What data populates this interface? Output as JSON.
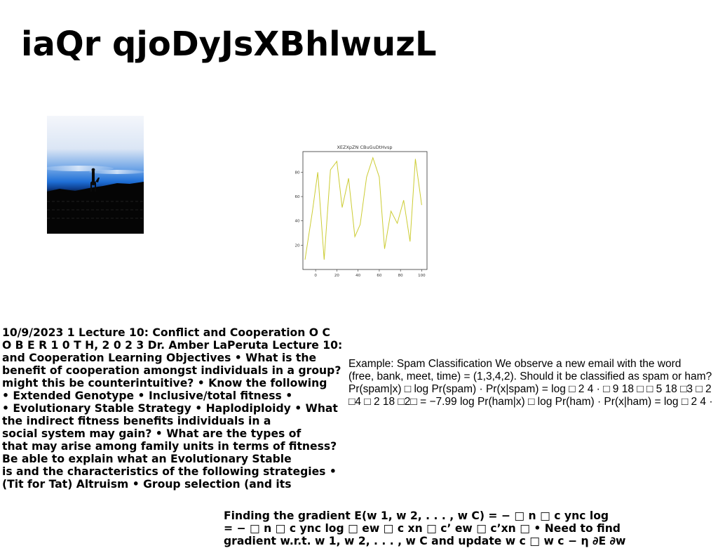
{
  "page": {
    "title": "iaQr qjoDyJsXBhlwuzL"
  },
  "lecture_paragraph": {
    "lines": [
      "10/9/2023 1 Lecture 10: Conflict and Cooperation O C",
      "O B E R 1 0 T H, 2 0 2 3 Dr. Amber LaPeruta Lecture 10:",
      "and Cooperation Learning Objectives • What is the",
      "benefit of cooperation amongst individuals in a group?",
      "might this be counterintuitive? • Know the following",
      "• Extended Genotype • Inclusive/total fitness •",
      "• Evolutionary Stable Strategy • Haplodiploidy • What",
      "the indirect fitness benefits individuals in a",
      "social system may gain? • What are the types of",
      "that may arise among family units in terms of fitness?",
      "Be able to explain what an Evolutionary Stable",
      "is and the characteristics of the following strategies •",
      "(Tit for Tat) Altruism • Group selection (and its"
    ]
  },
  "spam_paragraph": {
    "lines": [
      "Example: Spam Classification We observe a new email with the word",
      "(free, bank, meet, time) = (1,3,4,2). Should it be classified as spam or ham?",
      "Pr(spam|x) □ log Pr(spam) · Pr(x|spam) = log □ 2 4 · □ 9 18 □ □ 5 18 □3 □ 2",
      "□4 □ 2 18 □2□ = −7.99 log Pr(ham|x) □ log Pr(ham) · Pr(x|ham) = log □ 2 4 ·"
    ]
  },
  "gradient_paragraph": {
    "lines": [
      "Finding the gradient E(w 1, w 2, . . . , w C) = − □ n □ c ync log",
      "= − □ n □ c ync log □ ew □ c xn □ c’ ew □ c’xn □ • Need to find",
      "gradient w.r.t. w 1, w 2, . . . , w C and update w c □ w c − η ∂E ∂w"
    ]
  },
  "colors": {
    "line": "#cccc33",
    "axis": "#333333",
    "sky_top": "#f4f6fb",
    "sky_blue": "#1f6fd6",
    "ground": "#050505"
  },
  "chart_data": {
    "type": "line",
    "title": "XEZXpZN CBuGuDtHvsp",
    "xlabel": "",
    "ylabel": "",
    "xlim": [
      -12,
      105
    ],
    "ylim": [
      0,
      97
    ],
    "xticks": [
      0,
      20,
      40,
      60,
      80,
      100
    ],
    "yticks": [
      20,
      40,
      60,
      80
    ],
    "grid": false,
    "series": [
      {
        "x": [
          -10,
          -3,
          2,
          8,
          14,
          20,
          25,
          31,
          37,
          42,
          48,
          54,
          60,
          65,
          71,
          77,
          83,
          89,
          94,
          100
        ],
        "y": [
          8,
          48,
          80,
          8,
          82,
          89,
          51,
          75,
          27,
          37,
          76,
          92,
          76,
          17,
          48,
          38,
          57,
          23,
          91,
          53
        ]
      }
    ]
  }
}
